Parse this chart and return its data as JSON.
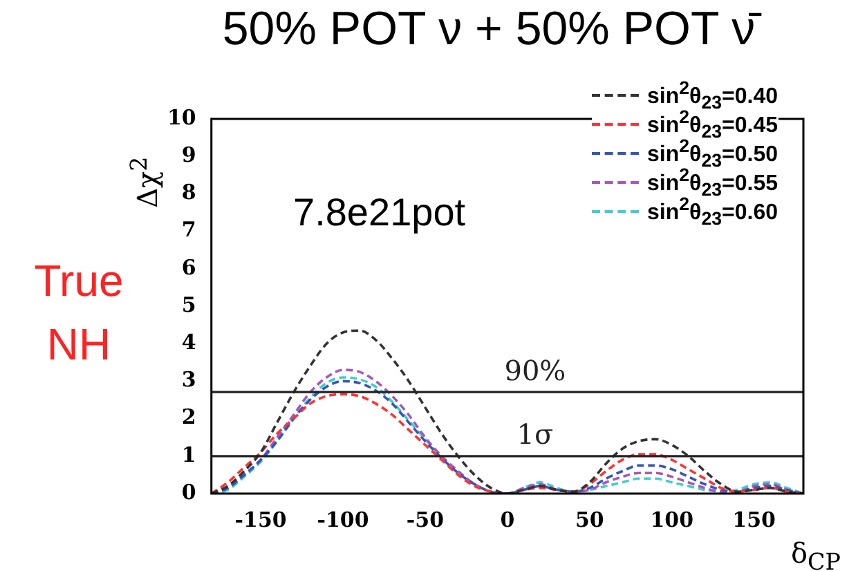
{
  "chart_data": {
    "type": "line",
    "title": "50% POT ν + 50% POT ν̄",
    "xlabel": "δ$_{CP}$",
    "ylabel": "Δχ$^{2}$",
    "annotations": [
      "7.8e21pot",
      "True NH",
      "90%",
      "1σ"
    ],
    "x": [
      -180,
      -170,
      -160,
      -150,
      -140,
      -130,
      -120,
      -110,
      -100,
      -90,
      -80,
      -70,
      -60,
      -50,
      -40,
      -30,
      -20,
      -10,
      0,
      10,
      20,
      30,
      40,
      50,
      60,
      70,
      80,
      90,
      100,
      110,
      120,
      130,
      140,
      150,
      160,
      170,
      180
    ],
    "series": [
      {
        "name": "sin$^{2}$θ$_{23}$=0.40",
        "color": "#333333",
        "values": [
          0,
          0.2,
          0.6,
          1.1,
          1.9,
          2.7,
          3.4,
          4.0,
          4.3,
          4.35,
          4.1,
          3.6,
          3.0,
          2.3,
          1.6,
          1.0,
          0.5,
          0.15,
          0,
          0.1,
          0.2,
          0.1,
          0.05,
          0.3,
          0.8,
          1.2,
          1.4,
          1.45,
          1.3,
          1.0,
          0.6,
          0.25,
          0.05,
          0.1,
          0.15,
          0.05,
          0
        ]
      },
      {
        "name": "sin$^{2}$θ$_{23}$=0.45",
        "color": "#ff3333",
        "values": [
          0,
          0.3,
          0.7,
          1.1,
          1.6,
          2.0,
          2.4,
          2.6,
          2.65,
          2.6,
          2.4,
          2.1,
          1.7,
          1.3,
          0.9,
          0.5,
          0.2,
          0.05,
          0,
          0.1,
          0.15,
          0.1,
          0.05,
          0.25,
          0.6,
          0.9,
          1.05,
          1.05,
          0.9,
          0.65,
          0.4,
          0.15,
          0.05,
          0.1,
          0.15,
          0.05,
          0
        ]
      },
      {
        "name": "sin$^{2}$θ$_{23}$=0.50",
        "color": "#3355bb",
        "values": [
          0,
          0.15,
          0.5,
          0.9,
          1.4,
          2.0,
          2.5,
          2.85,
          3.0,
          2.95,
          2.75,
          2.4,
          1.9,
          1.4,
          0.95,
          0.55,
          0.25,
          0.05,
          0,
          0.1,
          0.2,
          0.1,
          0.05,
          0.15,
          0.4,
          0.6,
          0.75,
          0.75,
          0.65,
          0.45,
          0.25,
          0.1,
          0.05,
          0.15,
          0.2,
          0.1,
          0
        ]
      },
      {
        "name": "sin$^{2}$θ$_{23}$=0.55",
        "color": "#aa55bb",
        "values": [
          0,
          0.15,
          0.5,
          0.9,
          1.5,
          2.1,
          2.7,
          3.1,
          3.3,
          3.25,
          3.0,
          2.6,
          2.1,
          1.5,
          1.0,
          0.6,
          0.25,
          0.05,
          0,
          0.15,
          0.25,
          0.1,
          0.05,
          0.1,
          0.3,
          0.45,
          0.55,
          0.55,
          0.45,
          0.3,
          0.15,
          0.05,
          0.05,
          0.2,
          0.25,
          0.1,
          0
        ]
      },
      {
        "name": "sin$^{2}$θ$_{23}$=0.60",
        "color": "#44cccc",
        "values": [
          0,
          0.1,
          0.45,
          0.85,
          1.4,
          2.0,
          2.55,
          2.95,
          3.1,
          3.05,
          2.85,
          2.45,
          1.95,
          1.45,
          0.95,
          0.55,
          0.25,
          0.05,
          0,
          0.15,
          0.3,
          0.15,
          0.05,
          0.1,
          0.2,
          0.3,
          0.4,
          0.4,
          0.3,
          0.2,
          0.1,
          0.05,
          0.1,
          0.25,
          0.3,
          0.15,
          0
        ]
      }
    ],
    "xlim": [
      -180,
      180
    ],
    "xticks": [
      -150,
      -100,
      -50,
      0,
      50,
      100,
      150
    ],
    "ylim": [
      0,
      10
    ],
    "yticks": [
      0,
      1,
      2,
      3,
      4,
      5,
      6,
      7,
      8,
      9,
      10
    ],
    "ref_lines": [
      {
        "axis": "y",
        "value": 2.71,
        "color": "#222222"
      },
      {
        "axis": "y",
        "value": 1,
        "color": "#222222"
      }
    ],
    "grid": false,
    "legend": "top right",
    "marker": "none",
    "line_style": "dashed"
  }
}
